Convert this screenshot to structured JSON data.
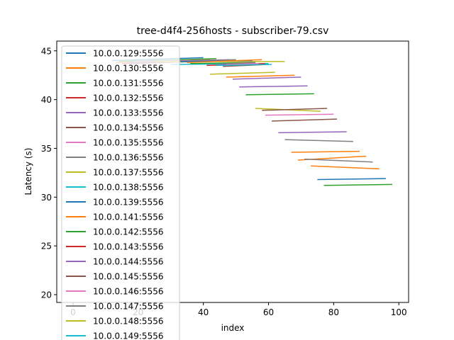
{
  "chart_data": {
    "type": "line",
    "title": "tree-d4f4-256hosts - subscriber-79.csv",
    "xlabel": "index",
    "ylabel": "Latency (s)",
    "xlim": [
      -5.0,
      103.0
    ],
    "ylim": [
      19.2,
      46.0
    ],
    "xticks": [
      0,
      20,
      40,
      60,
      80,
      100
    ],
    "yticks": [
      20,
      25,
      30,
      35,
      40,
      45
    ],
    "grid": false,
    "legend_position": "upper left",
    "series": [
      {
        "name": "10.0.0.129:5556",
        "color": "#1f77b4",
        "x": [
          12,
          40
        ],
        "y": [
          44.0,
          44.3
        ]
      },
      {
        "name": "10.0.0.130:5556",
        "color": "#ff7f0e",
        "x": [
          13,
          42
        ],
        "y": [
          43.8,
          44.1
        ]
      },
      {
        "name": "10.0.0.131:5556",
        "color": "#2ca02c",
        "x": [
          14,
          44
        ],
        "y": [
          43.9,
          44.2
        ]
      },
      {
        "name": "10.0.0.132:5556",
        "color": "#d62728",
        "x": [
          15,
          40
        ],
        "y": [
          43.7,
          44.0
        ]
      },
      {
        "name": "10.0.0.133:5556",
        "color": "#9467bd",
        "x": [
          17,
          42
        ],
        "y": [
          43.8,
          44.0
        ]
      },
      {
        "name": "10.0.0.134:5556",
        "color": "#8c564b",
        "x": [
          18,
          46
        ],
        "y": [
          43.7,
          44.0
        ]
      },
      {
        "name": "10.0.0.135:5556",
        "color": "#e377c2",
        "x": [
          19,
          48
        ],
        "y": [
          43.9,
          44.1
        ]
      },
      {
        "name": "10.0.0.136:5556",
        "color": "#7f7f7f",
        "x": [
          20,
          50
        ],
        "y": [
          43.8,
          44.1
        ]
      },
      {
        "name": "10.0.0.137:5556",
        "color": "#bcbd22",
        "x": [
          25,
          65
        ],
        "y": [
          43.9,
          43.9
        ]
      },
      {
        "name": "10.0.0.138:5556",
        "color": "#17becf",
        "x": [
          30,
          60
        ],
        "y": [
          43.6,
          43.7
        ]
      },
      {
        "name": "10.0.0.139:5556",
        "color": "#1f77b4",
        "x": [
          33,
          55
        ],
        "y": [
          43.9,
          44.0
        ]
      },
      {
        "name": "10.0.0.141:5556",
        "color": "#ff7f0e",
        "x": [
          35,
          58
        ],
        "y": [
          43.8,
          44.1
        ]
      },
      {
        "name": "10.0.0.142:5556",
        "color": "#2ca02c",
        "x": [
          36,
          56
        ],
        "y": [
          43.7,
          43.8
        ]
      },
      {
        "name": "10.0.0.143:5556",
        "color": "#d62728",
        "x": [
          41,
          59
        ],
        "y": [
          43.5,
          43.7
        ]
      },
      {
        "name": "10.0.0.144:5556",
        "color": "#9467bd",
        "x": [
          45,
          55
        ],
        "y": [
          43.6,
          43.8
        ]
      },
      {
        "name": "10.0.0.145:5556",
        "color": "#8c564b",
        "x": [
          46,
          60
        ],
        "y": [
          43.4,
          43.6
        ]
      },
      {
        "name": "10.0.0.146:5556",
        "color": "#e377c2",
        "x": [
          47,
          57
        ],
        "y": [
          43.6,
          43.7
        ]
      },
      {
        "name": "10.0.0.147:5556",
        "color": "#7f7f7f",
        "x": [
          48,
          56
        ],
        "y": [
          43.7,
          43.8
        ]
      },
      {
        "name": "10.0.0.148:5556",
        "color": "#bcbd22",
        "x": [
          42,
          62
        ],
        "y": [
          42.6,
          42.8
        ]
      },
      {
        "name": "10.0.0.149:5556",
        "color": "#17becf",
        "x": [
          44,
          61
        ],
        "y": [
          43.5,
          43.6
        ]
      }
    ],
    "extra_lines": [
      {
        "color": "#ff7f0e",
        "x": [
          47,
          68
        ],
        "y": [
          42.3,
          42.5
        ]
      },
      {
        "color": "#9467bd",
        "x": [
          49,
          70
        ],
        "y": [
          42.1,
          42.3
        ]
      },
      {
        "color": "#9467bd",
        "x": [
          51,
          72
        ],
        "y": [
          41.3,
          41.4
        ]
      },
      {
        "color": "#2ca02c",
        "x": [
          53,
          74
        ],
        "y": [
          40.5,
          40.6
        ]
      },
      {
        "color": "#bcbd22",
        "x": [
          56,
          76
        ],
        "y": [
          39.1,
          38.8
        ]
      },
      {
        "color": "#8c564b",
        "x": [
          58,
          78
        ],
        "y": [
          38.9,
          39.1
        ]
      },
      {
        "color": "#e377c2",
        "x": [
          59,
          80
        ],
        "y": [
          38.4,
          38.5
        ]
      },
      {
        "color": "#8c564b",
        "x": [
          61,
          81
        ],
        "y": [
          37.8,
          38.0
        ]
      },
      {
        "color": "#9467bd",
        "x": [
          63,
          84
        ],
        "y": [
          36.6,
          36.7
        ]
      },
      {
        "color": "#7f7f7f",
        "x": [
          65,
          86
        ],
        "y": [
          35.9,
          35.7
        ]
      },
      {
        "color": "#ff7f0e",
        "x": [
          67,
          88
        ],
        "y": [
          34.6,
          34.7
        ]
      },
      {
        "color": "#ff7f0e",
        "x": [
          69,
          90
        ],
        "y": [
          33.8,
          34.2
        ]
      },
      {
        "color": "#7f7f7f",
        "x": [
          71,
          92
        ],
        "y": [
          33.9,
          33.6
        ]
      },
      {
        "color": "#ff7f0e",
        "x": [
          73,
          94
        ],
        "y": [
          33.2,
          32.9
        ]
      },
      {
        "color": "#1f77b4",
        "x": [
          75,
          96
        ],
        "y": [
          31.8,
          31.9
        ]
      },
      {
        "color": "#2ca02c",
        "x": [
          77,
          98
        ],
        "y": [
          31.2,
          31.3
        ]
      }
    ]
  }
}
